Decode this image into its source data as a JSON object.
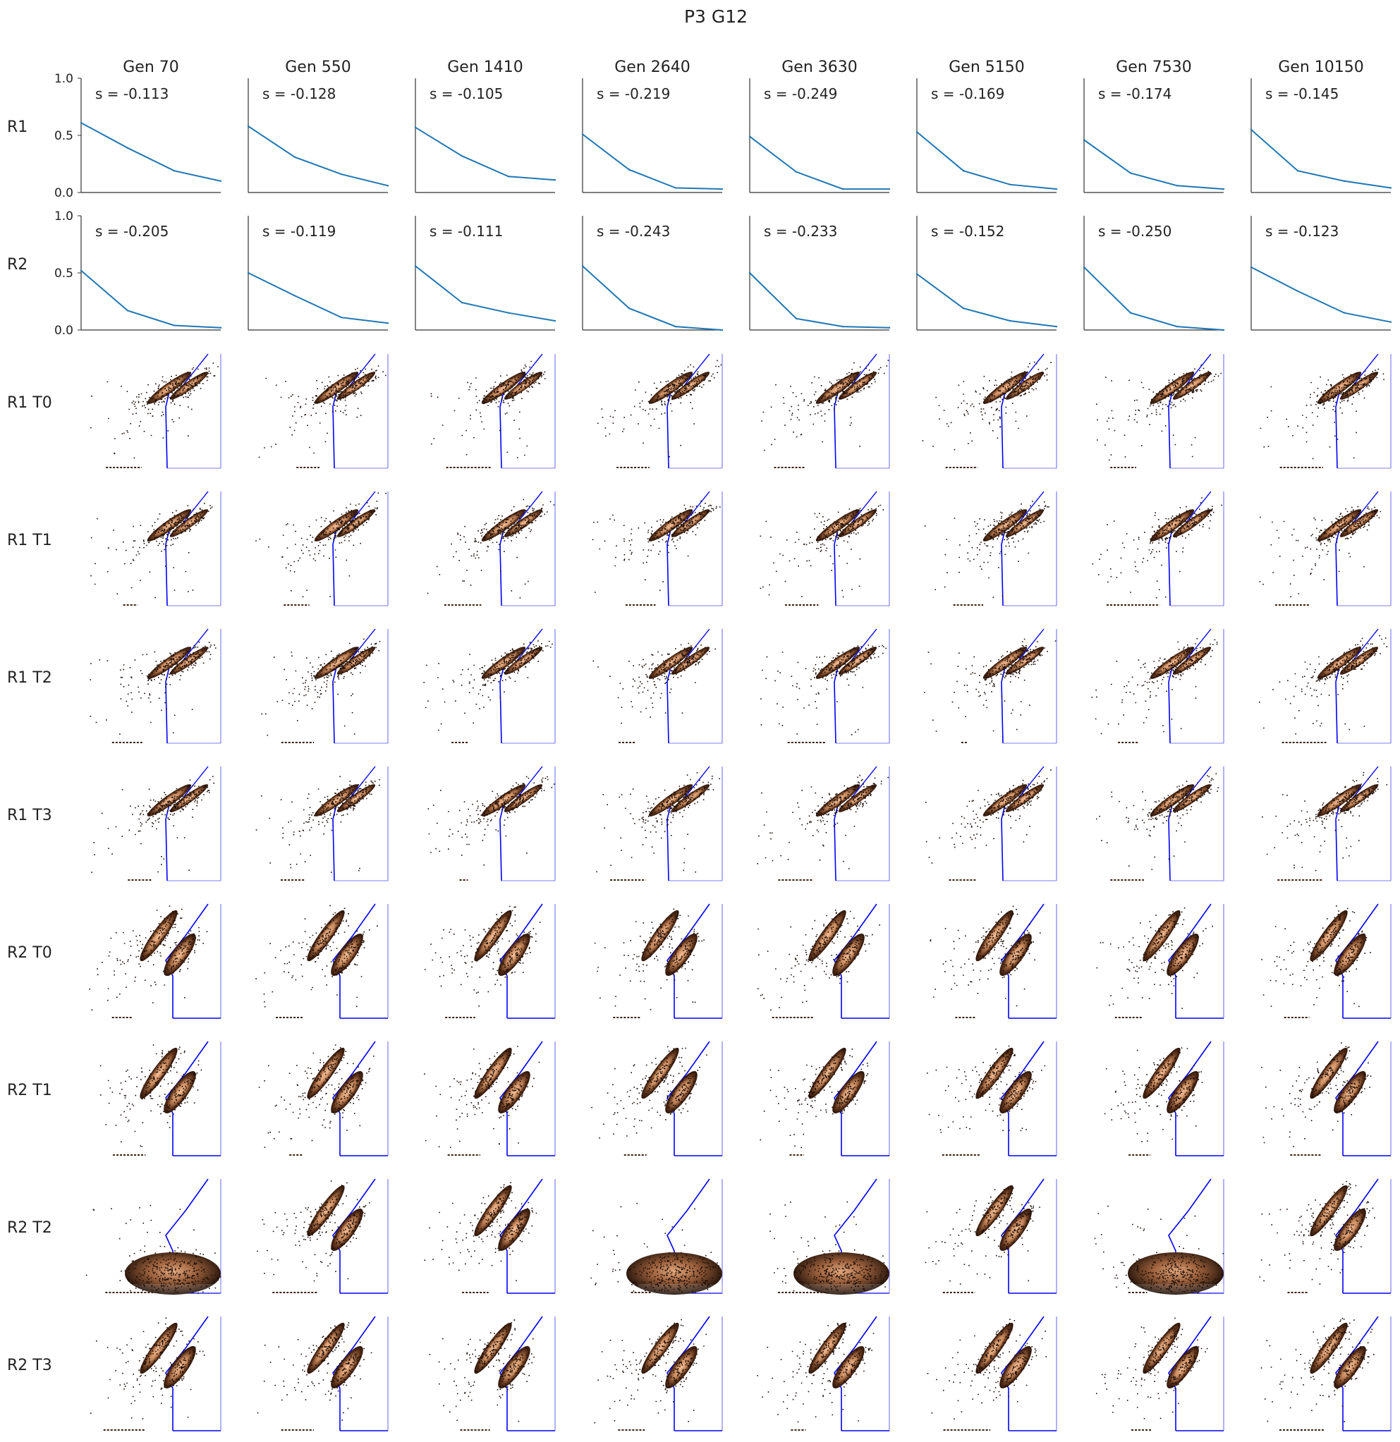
{
  "title": "P3 G12",
  "columns": [
    "Gen 70",
    "Gen 550",
    "Gen 1410",
    "Gen 2640",
    "Gen 3630",
    "Gen 5150",
    "Gen 7530",
    "Gen 10150"
  ],
  "colors": {
    "line": "#1f77b4",
    "gate": "#0000ff",
    "density_low": "#2a140a",
    "density_high": "#f2b48a",
    "axis": "#333333"
  },
  "chart_data": [
    {
      "type": "line",
      "row_label": "R1",
      "ylim": [
        0,
        1
      ],
      "yticks": [
        "0.0",
        "0.5",
        "1.0"
      ],
      "x": [
        0,
        1,
        2,
        3
      ],
      "panels": [
        {
          "annotation": "s = -0.113",
          "values": [
            0.61,
            0.39,
            0.19,
            0.1
          ]
        },
        {
          "annotation": "s = -0.128",
          "values": [
            0.58,
            0.31,
            0.16,
            0.06
          ]
        },
        {
          "annotation": "s = -0.105",
          "values": [
            0.57,
            0.32,
            0.14,
            0.11
          ]
        },
        {
          "annotation": "s = -0.219",
          "values": [
            0.51,
            0.2,
            0.04,
            0.03
          ]
        },
        {
          "annotation": "s = -0.249",
          "values": [
            0.49,
            0.18,
            0.03,
            0.03
          ]
        },
        {
          "annotation": "s = -0.169",
          "values": [
            0.53,
            0.19,
            0.07,
            0.03
          ]
        },
        {
          "annotation": "s = -0.174",
          "values": [
            0.46,
            0.17,
            0.06,
            0.03
          ]
        },
        {
          "annotation": "s = -0.145",
          "values": [
            0.55,
            0.19,
            0.1,
            0.04
          ]
        }
      ]
    },
    {
      "type": "line",
      "row_label": "R2",
      "ylim": [
        0,
        1
      ],
      "yticks": [
        "0.0",
        "0.5",
        "1.0"
      ],
      "x": [
        0,
        1,
        2,
        3
      ],
      "panels": [
        {
          "annotation": "s = -0.205",
          "values": [
            0.52,
            0.17,
            0.04,
            0.02
          ]
        },
        {
          "annotation": "s = -0.119",
          "values": [
            0.5,
            0.3,
            0.11,
            0.06
          ]
        },
        {
          "annotation": "s = -0.111",
          "values": [
            0.56,
            0.24,
            0.15,
            0.08
          ]
        },
        {
          "annotation": "s = -0.243",
          "values": [
            0.56,
            0.19,
            0.03,
            0.0
          ]
        },
        {
          "annotation": "s = -0.233",
          "values": [
            0.5,
            0.1,
            0.03,
            0.02
          ]
        },
        {
          "annotation": "s = -0.152",
          "values": [
            0.49,
            0.19,
            0.08,
            0.03
          ]
        },
        {
          "annotation": "s = -0.250",
          "values": [
            0.55,
            0.15,
            0.03,
            0.0
          ]
        },
        {
          "annotation": "s = -0.123",
          "values": [
            0.55,
            0.34,
            0.15,
            0.07
          ]
        }
      ]
    },
    {
      "type": "heatmap",
      "rows": [
        {
          "row_label": "R1 T0",
          "replicate": "R1",
          "style": "normal"
        },
        {
          "row_label": "R1 T1",
          "replicate": "R1",
          "style": "normal"
        },
        {
          "row_label": "R1 T2",
          "replicate": "R1",
          "style": "normal"
        },
        {
          "row_label": "R1 T3",
          "replicate": "R1",
          "style": "normal"
        },
        {
          "row_label": "R2 T0",
          "replicate": "R2",
          "style": "normal"
        },
        {
          "row_label": "R2 T1",
          "replicate": "R2",
          "style": "normal"
        },
        {
          "row_label": "R2 T2",
          "replicate": "R2",
          "style": "mixed",
          "blob_columns": [
            0,
            3,
            4,
            6
          ]
        },
        {
          "row_label": "R2 T3",
          "replicate": "R2",
          "style": "normal"
        }
      ]
    }
  ]
}
